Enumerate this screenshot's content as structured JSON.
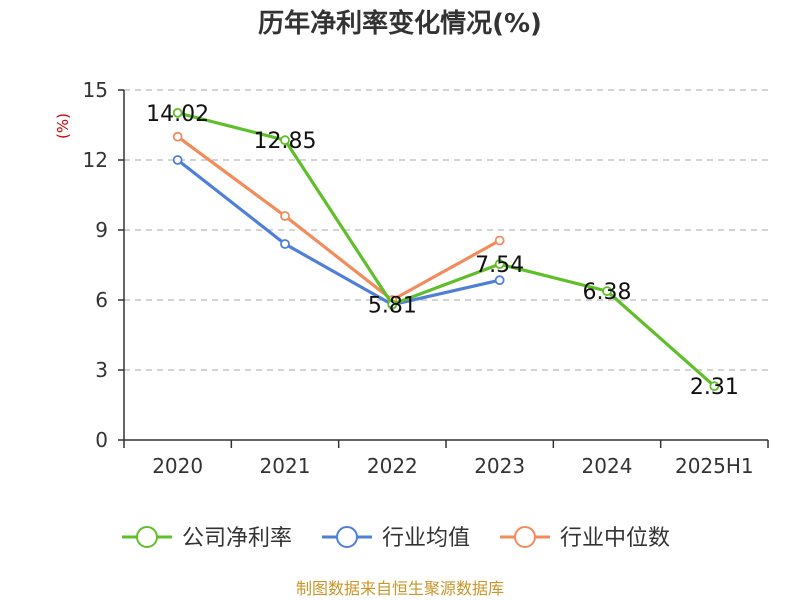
{
  "chart_data": {
    "type": "line",
    "title": "历年净利率变化情况(%)",
    "ylabel": "(%)",
    "xlabel": "",
    "categories": [
      "2020",
      "2021",
      "2022",
      "2023",
      "2024",
      "2025H1"
    ],
    "ylim": [
      0,
      15
    ],
    "yticks": [
      "0",
      "3",
      "6",
      "9",
      "12",
      "15"
    ],
    "grid": true,
    "legend_position": "bottom",
    "series": [
      {
        "name": "公司净利率",
        "color": "#5fbf2a",
        "values": [
          14.02,
          12.85,
          5.81,
          7.54,
          6.38,
          2.31
        ],
        "labels": [
          "14.02",
          "12.85",
          "5.81",
          "7.54",
          "6.38",
          "2.31"
        ]
      },
      {
        "name": "行业均值",
        "color": "#4f7fd8",
        "values": [
          12.0,
          8.4,
          5.8,
          6.85,
          null,
          null
        ]
      },
      {
        "name": "行业中位数",
        "color": "#f28c5c",
        "values": [
          13.0,
          9.6,
          6.0,
          8.55,
          null,
          null
        ]
      }
    ]
  },
  "colors": {
    "axis": "#333333",
    "grid": "#bbbbbb",
    "ylabel": "#cc0000",
    "source": "#c8962a"
  },
  "source_text": "制图数据来自恒生聚源数据库"
}
